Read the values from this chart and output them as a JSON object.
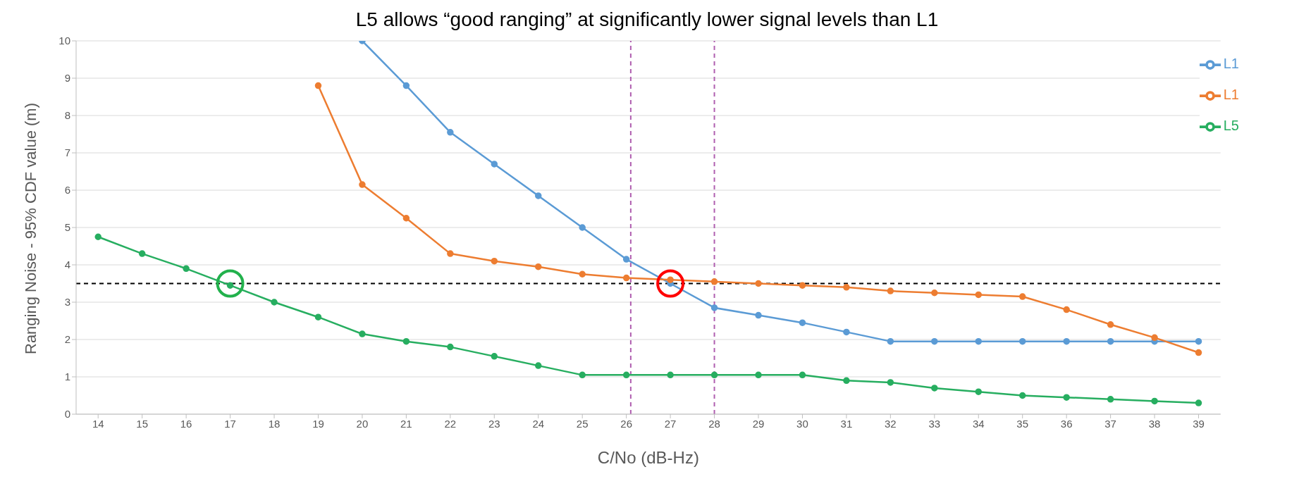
{
  "chart_data": {
    "type": "line",
    "title": "L5 allows “good ranging” at significantly lower signal levels than L1",
    "xlabel": "C/No (dB-Hz)",
    "ylabel": "Ranging Noise - 95% CDF value (m)",
    "x": [
      14,
      15,
      16,
      17,
      18,
      19,
      20,
      21,
      22,
      23,
      24,
      25,
      26,
      27,
      28,
      29,
      30,
      31,
      32,
      33,
      34,
      35,
      36,
      37,
      38,
      39
    ],
    "xlim": [
      13.5,
      39.5
    ],
    "xticks": [
      14,
      15,
      16,
      17,
      18,
      19,
      20,
      21,
      22,
      23,
      24,
      25,
      26,
      27,
      28,
      29,
      30,
      31,
      32,
      33,
      34,
      35,
      36,
      37,
      38,
      39
    ],
    "ylim": [
      0,
      10
    ],
    "yticks": [
      0,
      1,
      2,
      3,
      4,
      5,
      6,
      7,
      8,
      9,
      10
    ],
    "grid": "y",
    "legend": "top right",
    "marker": "circle",
    "line_style": "solid",
    "series": [
      {
        "name": "L1",
        "color": "#5b9bd5",
        "values": [
          null,
          null,
          null,
          null,
          null,
          null,
          10,
          8.8,
          7.55,
          6.7,
          5.85,
          5.0,
          4.15,
          3.5,
          2.85,
          2.65,
          2.45,
          2.2,
          1.95,
          1.95,
          1.95,
          1.95,
          1.95,
          1.95,
          1.95,
          1.95
        ]
      },
      {
        "name": "L1",
        "color": "#ed7d31",
        "values": [
          null,
          null,
          null,
          null,
          null,
          8.8,
          6.15,
          5.25,
          4.3,
          4.1,
          3.95,
          3.75,
          3.65,
          3.6,
          3.55,
          3.5,
          3.45,
          3.4,
          3.3,
          3.25,
          3.2,
          3.15,
          2.8,
          2.4,
          2.05,
          1.65
        ]
      },
      {
        "name": "L5",
        "color": "#27ae60",
        "values": [
          4.75,
          4.3,
          3.9,
          3.45,
          3.0,
          2.6,
          2.15,
          1.95,
          1.8,
          1.55,
          1.3,
          1.05,
          1.05,
          1.05,
          1.05,
          1.05,
          1.05,
          0.9,
          0.85,
          0.7,
          0.6,
          0.5,
          0.45,
          0.4,
          0.35,
          0.3
        ]
      },
      {
        "type": "scatter",
        "color": "#22b14c",
        "x": [
          17
        ],
        "values": [
          3.5
        ]
      },
      {
        "type": "scatter",
        "color": "#ff0000",
        "x": [
          27
        ],
        "values": [
          3.5
        ]
      }
    ],
    "ref_lines": [
      {
        "axis": "y",
        "value": 3.5,
        "color": "#000000",
        "line_style": "dashed"
      },
      {
        "axis": "x",
        "value": 26.1,
        "color": "#b05fb0",
        "line_style": "dashed"
      },
      {
        "axis": "x",
        "value": 28,
        "color": "#b05fb0",
        "line_style": "dashed"
      }
    ]
  }
}
